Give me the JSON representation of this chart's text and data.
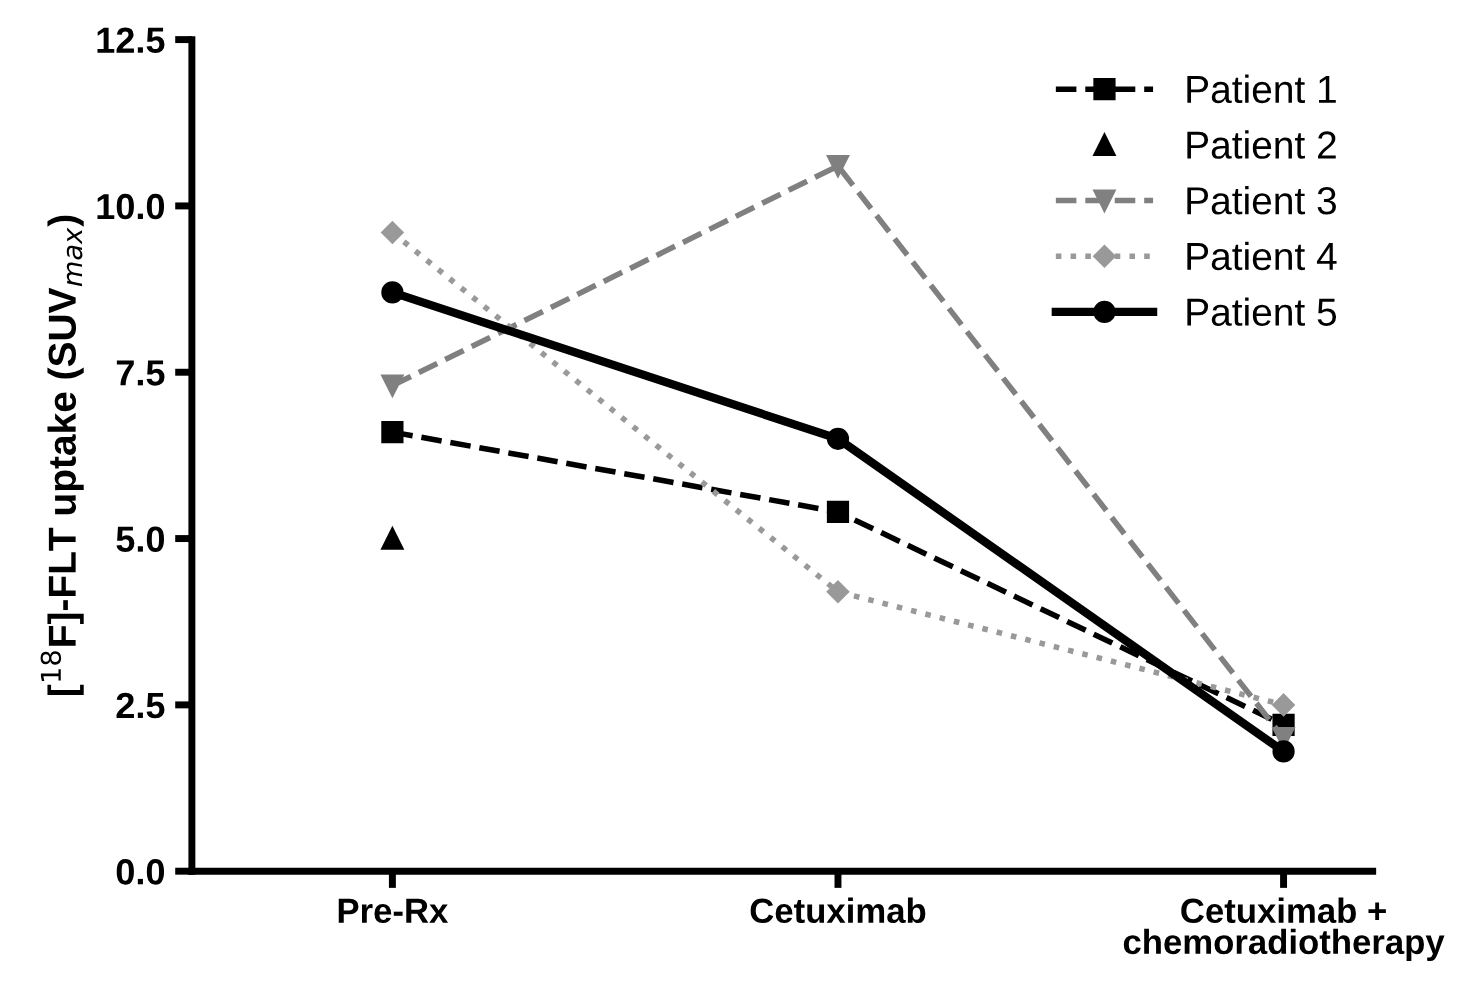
{
  "chart_data": {
    "type": "line",
    "ylabel": "[$^{18}$F]-FLT uptake (SUV$_{max}$)",
    "categories": [
      "Pre-Rx",
      "Cetuximab",
      "Cetuximab +\nchemoradiotherapy"
    ],
    "series": [
      {
        "name": "Patient 1",
        "color": "#000000",
        "marker": "square",
        "line_style": "dashed",
        "values": [
          6.6,
          5.4,
          2.2
        ]
      },
      {
        "name": "Patient 2",
        "color": "#000000",
        "marker": "triangle",
        "type": "scatter",
        "values": [
          5.0,
          null,
          null
        ]
      },
      {
        "name": "Patient 3",
        "color": "#808080",
        "marker": "triangle_down",
        "line_style": "dashed",
        "values": [
          7.3,
          10.6,
          2.0
        ]
      },
      {
        "name": "Patient 4",
        "color": "#999999",
        "marker": "diamond",
        "line_style": "dotted",
        "values": [
          9.6,
          4.2,
          2.5
        ]
      },
      {
        "name": "Patient 5",
        "color": "#000000",
        "marker": "circle",
        "line_style": "solid",
        "values": [
          8.7,
          6.5,
          1.8
        ]
      }
    ],
    "ylim": [
      0,
      12.5
    ],
    "yticks": [
      {
        "value": 0,
        "label": "0.0"
      },
      {
        "value": 2.5,
        "label": "2.5"
      },
      {
        "value": 5,
        "label": "5.0"
      },
      {
        "value": 7.5,
        "label": "7.5"
      },
      {
        "value": 10,
        "label": "10.0"
      },
      {
        "value": 12.5,
        "label": "12.5"
      }
    ],
    "grid": false,
    "legend": "top right"
  }
}
